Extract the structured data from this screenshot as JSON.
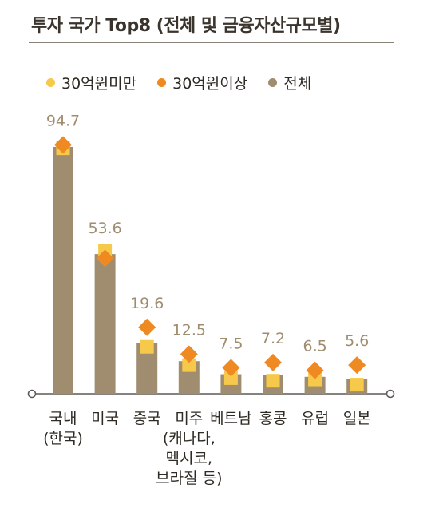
{
  "title": "투자 국가 Top8 (전체 및 금융자산규모별)",
  "legend": [
    {
      "label": "30억원미만",
      "color": "#f7c94a",
      "shape": "square-dot"
    },
    {
      "label": "30억원이상",
      "color": "#ef8a22",
      "shape": "diamond-dot"
    },
    {
      "label": "전체",
      "color": "#a08d70",
      "shape": "circle-dot"
    }
  ],
  "colors": {
    "total_bar": "#a08d70",
    "under_30": "#f7c94a",
    "over_30": "#ef8a22",
    "value_label": "#a08d70",
    "axis": "#5e5a54"
  },
  "chart_data": {
    "type": "bar",
    "title": "투자 국가 Top8 (전체 및 금융자산규모별)",
    "categories": [
      "국내\n(한국)",
      "미국",
      "중국",
      "미주\n(캐나다,\n멕시코,\n브라질 등)",
      "베트남",
      "홍콩",
      "유럽",
      "일본"
    ],
    "series": [
      {
        "name": "전체",
        "kind": "bar",
        "values": [
          94.7,
          53.6,
          19.6,
          12.5,
          7.5,
          7.2,
          6.5,
          5.6
        ]
      },
      {
        "name": "30억원미만",
        "kind": "square-marker",
        "values": [
          94.2,
          55.0,
          18.0,
          11.0,
          6.0,
          5.0,
          5.5,
          3.5
        ]
      },
      {
        "name": "30억원이상",
        "kind": "diamond-marker",
        "values": [
          95.5,
          52.0,
          25.5,
          15.2,
          10.0,
          12.0,
          9.0,
          11.0
        ]
      }
    ],
    "value_labels": [
      "94.7",
      "53.6",
      "19.6",
      "12.5",
      "7.5",
      "7.2",
      "6.5",
      "5.6"
    ],
    "ylim": [
      0,
      100
    ],
    "grid": false,
    "legend_position": "top"
  }
}
